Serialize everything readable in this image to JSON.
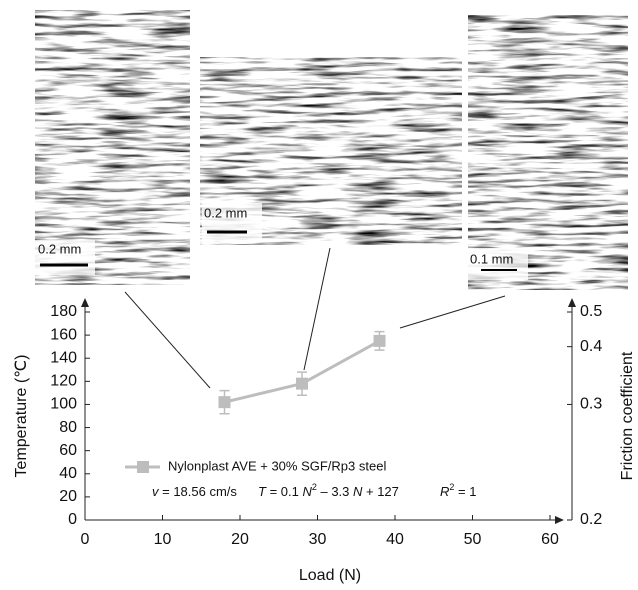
{
  "micrographs": [
    {
      "scale_label": "0.2 mm"
    },
    {
      "scale_label": "0.2 mm"
    },
    {
      "scale_label": "0.1 mm"
    }
  ],
  "chart_data": {
    "type": "line",
    "x_label": "Load (N)",
    "y_label": "Temperature (℃)",
    "y2_label": "Friction coefficient",
    "x": [
      18,
      28,
      38
    ],
    "series": [
      {
        "name": "Nylonplast AVE + 30% SGF/Rp3 steel",
        "color": "#bdbdbd",
        "values": [
          102,
          118,
          155
        ],
        "errors": [
          10,
          10,
          8
        ]
      }
    ],
    "velocity": [
      "v",
      " = 18.56 cm/s"
    ],
    "equation": [
      "T",
      " = 0.1 ",
      "N",
      "2",
      " – 3.3 ",
      "N",
      " + 127"
    ],
    "r_squared": [
      "R",
      "2",
      " = 1"
    ],
    "xlim": [
      0,
      60
    ],
    "xticks": [
      0,
      10,
      20,
      30,
      40,
      50,
      60
    ],
    "ylim": [
      0,
      180
    ],
    "yticks": [
      0,
      20,
      40,
      60,
      80,
      100,
      120,
      140,
      160,
      180
    ],
    "y2lim": [
      0.2,
      0.5
    ],
    "y2ticks": [
      0.2,
      0.3,
      0.4,
      0.5
    ],
    "y2scale": "reciprocal"
  }
}
